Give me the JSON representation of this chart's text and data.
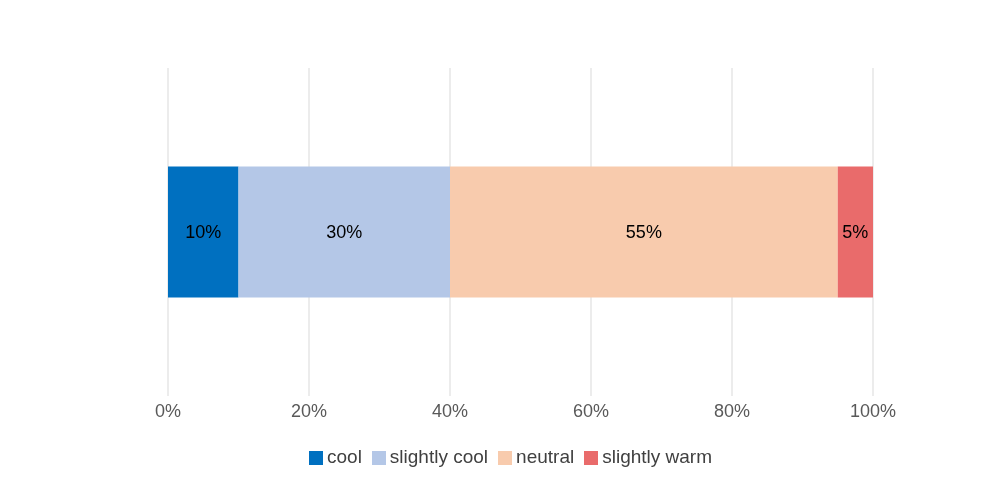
{
  "chart_data": {
    "type": "bar",
    "orientation": "horizontal",
    "stacked": true,
    "categories": [
      null
    ],
    "series": [
      {
        "name": "cool",
        "color": "#0070c0",
        "values": [
          10
        ],
        "value_labels": [
          "10%"
        ]
      },
      {
        "name": "slightly cool",
        "color": "#b4c7e7",
        "values": [
          30
        ],
        "value_labels": [
          "30%"
        ]
      },
      {
        "name": "neutral",
        "color": "#f8cbad",
        "values": [
          55
        ],
        "value_labels": [
          "55%"
        ]
      },
      {
        "name": "slightly warm",
        "color": "#e96b6b",
        "values": [
          5
        ],
        "value_labels": [
          "5%"
        ]
      }
    ],
    "xlim": [
      0,
      100
    ],
    "xticks": [
      {
        "value": 0,
        "label": "0%"
      },
      {
        "value": 20,
        "label": "20%"
      },
      {
        "value": 40,
        "label": "40%"
      },
      {
        "value": 60,
        "label": "60%"
      },
      {
        "value": 80,
        "label": "80%"
      },
      {
        "value": 100,
        "label": "100%"
      }
    ],
    "grid": "x",
    "legend": "bottom"
  }
}
